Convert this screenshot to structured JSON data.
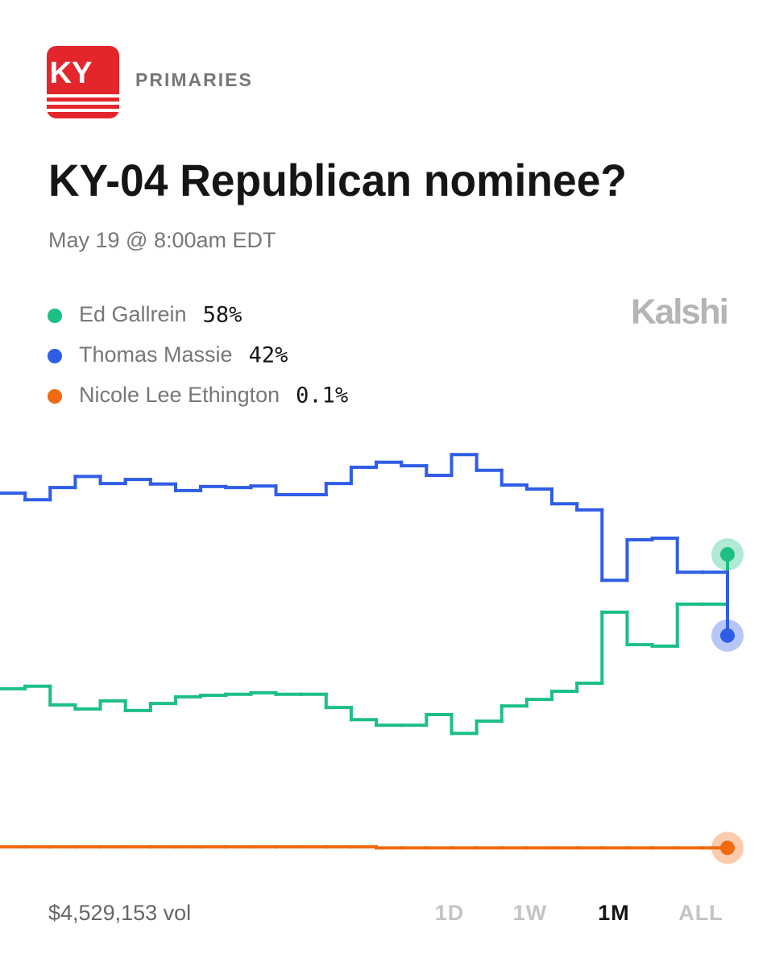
{
  "badge": "KY",
  "section": "PRIMARIES",
  "brand": "Kalshi",
  "chart_data": {
    "type": "line",
    "title": "KY-04 Republican nominee?",
    "subtitle": "May 19 @ 8:00am EDT",
    "step": true,
    "categories": [
      null,
      null,
      null,
      null,
      null,
      null,
      null,
      null,
      null,
      null,
      null,
      null,
      null,
      null,
      null,
      null,
      null,
      null,
      null,
      null,
      null,
      null,
      null,
      null,
      null,
      null,
      null,
      null,
      null,
      null
    ],
    "ylim": [
      0,
      100
    ],
    "series": [
      {
        "name": "Ed Gallrein",
        "color": "#1dbf85",
        "values": [
          31.5,
          32.0,
          28.3,
          27.5,
          29.1,
          27.2,
          28.6,
          29.9,
          30.2,
          30.4,
          30.7,
          30.4,
          30.4,
          27.8,
          25.4,
          24.3,
          24.3,
          26.4,
          22.7,
          25.1,
          28.1,
          29.4,
          31.0,
          32.6,
          46.6,
          40.2,
          39.9,
          48.2,
          48.2,
          58
        ],
        "value_labels": [
          null,
          null,
          null,
          null,
          null,
          null,
          null,
          null,
          null,
          null,
          null,
          null,
          null,
          null,
          null,
          null,
          null,
          null,
          null,
          null,
          null,
          null,
          null,
          null,
          null,
          null,
          null,
          null,
          null,
          "58%"
        ]
      },
      {
        "name": "Thomas Massie",
        "color": "#2f5de6",
        "values": [
          70.1,
          68.8,
          71.2,
          73.4,
          72.0,
          72.8,
          71.9,
          70.6,
          71.4,
          71.2,
          71.5,
          69.8,
          69.8,
          72.0,
          75.2,
          76.2,
          75.5,
          73.6,
          77.7,
          74.6,
          71.7,
          70.9,
          68.0,
          66.8,
          52.9,
          60.9,
          61.2,
          54.5,
          54.5,
          42
        ],
        "value_labels": [
          null,
          null,
          null,
          null,
          null,
          null,
          null,
          null,
          null,
          null,
          null,
          null,
          null,
          null,
          null,
          null,
          null,
          null,
          null,
          null,
          null,
          null,
          null,
          null,
          null,
          null,
          null,
          null,
          null,
          "42%"
        ]
      },
      {
        "name": "Nicole Lee Ethington",
        "color": "#f26a10",
        "values": [
          0.3,
          0.3,
          0.3,
          0.3,
          0.3,
          0.3,
          0.3,
          0.3,
          0.3,
          0.3,
          0.3,
          0.3,
          0.3,
          0.3,
          0.3,
          0.1,
          0.1,
          0.1,
          0.1,
          0.1,
          0.1,
          0.1,
          0.1,
          0.1,
          0.1,
          0.1,
          0.1,
          0.1,
          0.1,
          0.1
        ],
        "value_labels": [
          null,
          null,
          null,
          null,
          null,
          null,
          null,
          null,
          null,
          null,
          null,
          null,
          null,
          null,
          null,
          null,
          null,
          null,
          null,
          null,
          null,
          null,
          null,
          null,
          null,
          null,
          null,
          null,
          null,
          "0.1%"
        ]
      }
    ]
  },
  "footer": {
    "volume": "$4,529,153 vol",
    "ranges": [
      "1D",
      "1W",
      "1M",
      "ALL"
    ],
    "selected_range": "1M"
  }
}
